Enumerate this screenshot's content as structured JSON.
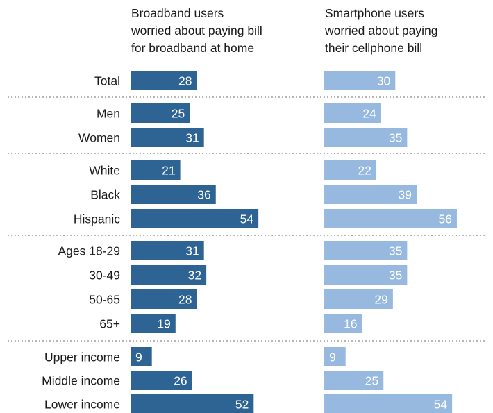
{
  "chart_data": {
    "type": "bar",
    "orientation": "horizontal",
    "categories": [
      "Total",
      "Men",
      "Women",
      "White",
      "Black",
      "Hispanic",
      "Ages 18-29",
      "30-49",
      "50-65",
      "65+",
      "Upper income",
      "Middle income",
      "Lower income"
    ],
    "group_breaks_after": [
      0,
      2,
      5,
      9
    ],
    "series": [
      {
        "heading": [
          "Broadband users",
          "worried about paying bill",
          "for broadband at home"
        ],
        "color": "#2d6493",
        "values": [
          28,
          25,
          31,
          21,
          36,
          54,
          31,
          32,
          28,
          19,
          9,
          26,
          52
        ]
      },
      {
        "heading": [
          "Smartphone users",
          "worried about paying",
          "their cellphone bill"
        ],
        "color": "#97b9df",
        "values": [
          30,
          24,
          35,
          22,
          39,
          56,
          35,
          35,
          29,
          16,
          9,
          25,
          54
        ]
      }
    ],
    "xlim": [
      0,
      56
    ],
    "grid": false,
    "data_labels": "inside-end",
    "axes_visible": false
  }
}
